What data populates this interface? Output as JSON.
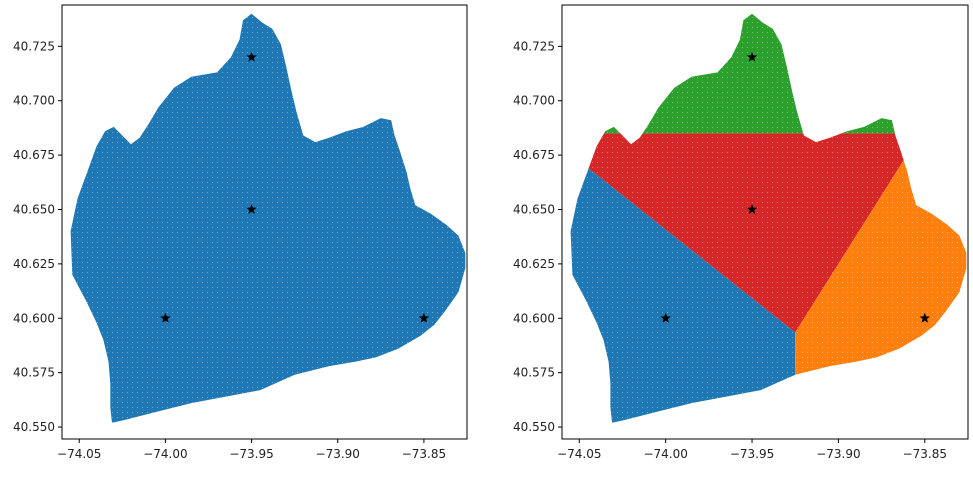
{
  "chart_data": [
    {
      "type": "scatter",
      "title": "",
      "xlabel": "",
      "ylabel": "",
      "xlim": [
        -74.06,
        -73.825
      ],
      "ylim": [
        40.5445,
        40.744
      ],
      "xticks": [
        -74.05,
        -74.0,
        -73.95,
        -73.9,
        -73.85
      ],
      "xtick_labels": [
        "−74.05",
        "−74.00",
        "−73.95",
        "−73.90",
        "−73.85"
      ],
      "yticks": [
        40.55,
        40.575,
        40.6,
        40.625,
        40.65,
        40.675,
        40.7,
        40.725
      ],
      "ytick_labels": [
        "40.550",
        "40.575",
        "40.600",
        "40.625",
        "40.650",
        "40.675",
        "40.700",
        "40.725"
      ],
      "grid": false,
      "region_boundary": [
        [
          -73.95,
          40.74
        ],
        [
          -73.944,
          40.736
        ],
        [
          -73.938,
          40.733
        ],
        [
          -73.933,
          40.726
        ],
        [
          -73.93,
          40.716
        ],
        [
          -73.927,
          40.705
        ],
        [
          -73.924,
          40.695
        ],
        [
          -73.92,
          40.684
        ],
        [
          -73.913,
          40.681
        ],
        [
          -73.905,
          40.683
        ],
        [
          -73.895,
          40.686
        ],
        [
          -73.885,
          40.688
        ],
        [
          -73.875,
          40.692
        ],
        [
          -73.869,
          40.691
        ],
        [
          -73.867,
          40.684
        ],
        [
          -73.864,
          40.677
        ],
        [
          -73.862,
          40.672
        ],
        [
          -73.86,
          40.667
        ],
        [
          -73.858,
          40.66
        ],
        [
          -73.855,
          40.652
        ],
        [
          -73.846,
          40.648
        ],
        [
          -73.837,
          40.643
        ],
        [
          -73.83,
          40.638
        ],
        [
          -73.826,
          40.63
        ],
        [
          -73.826,
          40.623
        ],
        [
          -73.83,
          40.612
        ],
        [
          -73.838,
          40.603
        ],
        [
          -73.844,
          40.597
        ],
        [
          -73.852,
          40.592
        ],
        [
          -73.865,
          40.586
        ],
        [
          -73.878,
          40.582
        ],
        [
          -73.89,
          40.58
        ],
        [
          -73.905,
          40.578
        ],
        [
          -73.925,
          40.574
        ],
        [
          -73.945,
          40.567
        ],
        [
          -73.965,
          40.564
        ],
        [
          -73.985,
          40.561
        ],
        [
          -74.005,
          40.557
        ],
        [
          -74.025,
          40.553
        ],
        [
          -74.031,
          40.552
        ],
        [
          -74.032,
          40.559
        ],
        [
          -74.032,
          40.57
        ],
        [
          -74.033,
          40.58
        ],
        [
          -74.036,
          40.59
        ],
        [
          -74.04,
          40.598
        ],
        [
          -74.046,
          40.608
        ],
        [
          -74.054,
          40.62
        ],
        [
          -74.055,
          40.64
        ],
        [
          -74.051,
          40.655
        ],
        [
          -74.045,
          40.668
        ],
        [
          -74.04,
          40.679
        ],
        [
          -74.035,
          40.686
        ],
        [
          -74.03,
          40.688
        ],
        [
          -74.025,
          40.684
        ],
        [
          -74.02,
          40.68
        ],
        [
          -74.015,
          40.683
        ],
        [
          -74.01,
          40.689
        ],
        [
          -74.004,
          40.697
        ],
        [
          -73.995,
          40.706
        ],
        [
          -73.985,
          40.711
        ],
        [
          -73.97,
          40.713
        ],
        [
          -73.962,
          40.72
        ],
        [
          -73.957,
          40.728
        ],
        [
          -73.955,
          40.737
        ]
      ],
      "centers": [
        {
          "x": -73.95,
          "y": 40.72
        },
        {
          "x": -73.95,
          "y": 40.65
        },
        {
          "x": -74.0,
          "y": 40.6
        },
        {
          "x": -73.85,
          "y": 40.6
        }
      ],
      "series": [
        {
          "color": "#1f77b4",
          "region": "all"
        }
      ],
      "center_marker": {
        "symbol": "star",
        "color": "#000000"
      }
    },
    {
      "type": "scatter",
      "title": "",
      "xlabel": "",
      "ylabel": "",
      "xlim": [
        -74.06,
        -73.825
      ],
      "ylim": [
        40.5445,
        40.744
      ],
      "xticks": [
        -74.05,
        -74.0,
        -73.95,
        -73.9,
        -73.85
      ],
      "xtick_labels": [
        "−74.05",
        "−74.00",
        "−73.95",
        "−73.90",
        "−73.85"
      ],
      "yticks": [
        40.55,
        40.575,
        40.6,
        40.625,
        40.65,
        40.675,
        40.7,
        40.725
      ],
      "ytick_labels": [
        "40.550",
        "40.575",
        "40.600",
        "40.625",
        "40.650",
        "40.675",
        "40.700",
        "40.725"
      ],
      "grid": false,
      "assignment": "nearest center",
      "centers": [
        {
          "x": -73.95,
          "y": 40.72,
          "color": "#2ca02c"
        },
        {
          "x": -73.95,
          "y": 40.65,
          "color": "#d62728"
        },
        {
          "x": -74.0,
          "y": 40.6,
          "color": "#1f77b4"
        },
        {
          "x": -73.85,
          "y": 40.6,
          "color": "#ff7f0e"
        }
      ],
      "center_marker": {
        "symbol": "star",
        "color": "#000000"
      }
    }
  ]
}
